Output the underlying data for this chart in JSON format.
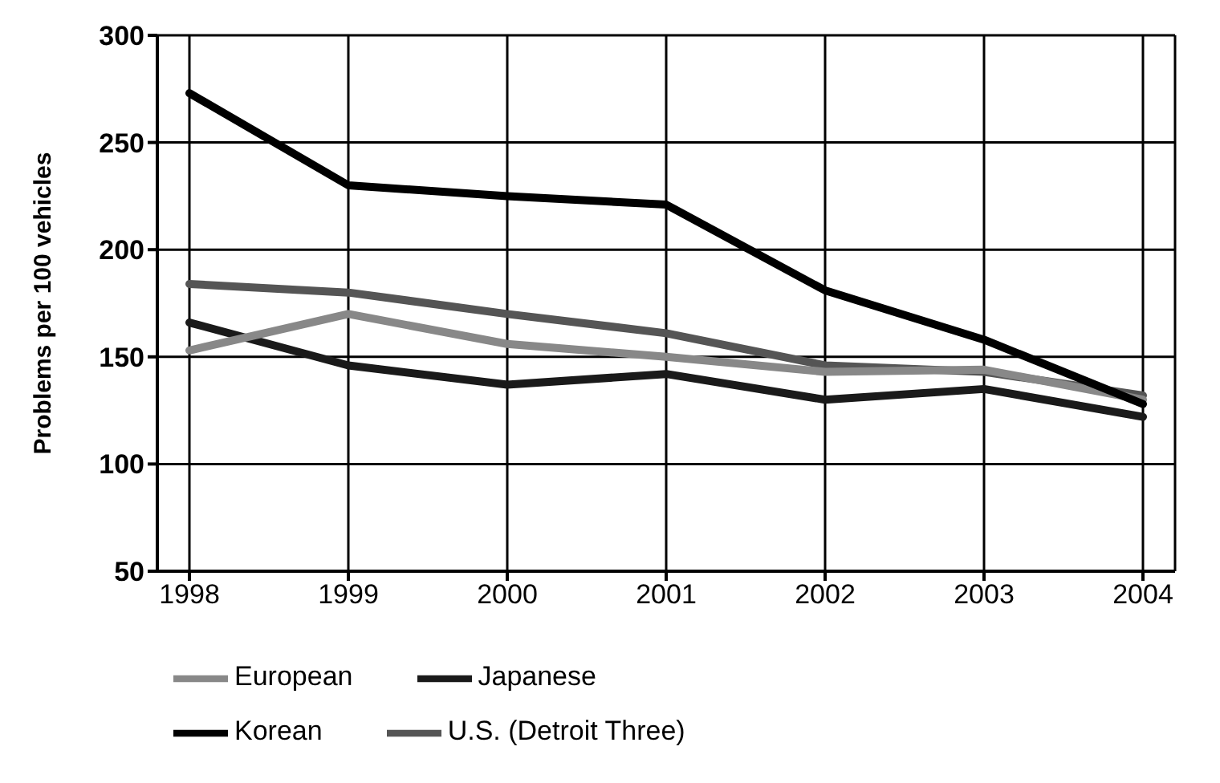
{
  "chart_data": {
    "type": "line",
    "ylabel": "Problems per 100 vehicles",
    "categories": [
      "1998",
      "1999",
      "2000",
      "2001",
      "2002",
      "2003",
      "2004"
    ],
    "ylim": [
      50,
      300
    ],
    "yticks": [
      50,
      100,
      150,
      200,
      250,
      300
    ],
    "grid": true,
    "legend": "bottom left",
    "marker": "none",
    "line_style": "solid",
    "series": [
      {
        "name": "Japanese",
        "color": "#1a1a1a",
        "values": [
          166,
          146,
          137,
          142,
          130,
          135,
          122
        ]
      },
      {
        "name": "U.S. (Detroit Three)",
        "color": "#555555",
        "values": [
          184,
          180,
          170,
          161,
          146,
          143,
          132
        ]
      },
      {
        "name": "European",
        "color": "#888888",
        "values": [
          153,
          170,
          156,
          150,
          143,
          144,
          130
        ]
      },
      {
        "name": "Korean",
        "color": "#000000",
        "values": [
          273,
          230,
          225,
          221,
          181,
          158,
          128
        ]
      }
    ]
  }
}
